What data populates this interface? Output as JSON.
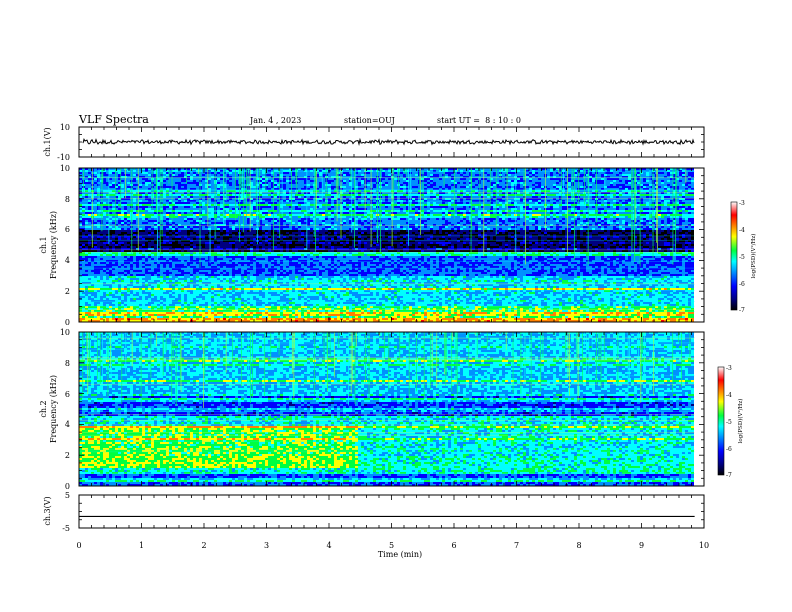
{
  "header": {
    "title": "VLF Spectra",
    "date": "Jan. 4 , 2023",
    "station": "station=OUJ",
    "start_ut": "start UT =  8 : 10 : 0"
  },
  "colors": {
    "background": "#ffffff",
    "axis": "#000000",
    "colormap": [
      "#000000",
      "#000080",
      "#0000ff",
      "#0090ff",
      "#00ffff",
      "#00ff40",
      "#ffff00",
      "#ff8000",
      "#ff0000",
      "#ffffff"
    ]
  },
  "chart_data": [
    {
      "type": "line",
      "panel": "ch1-waveform",
      "ylabel": "ch.1(V)",
      "ylim": [
        -10,
        10
      ],
      "y_ticks": [
        "10",
        "-10"
      ],
      "xlim": [
        0,
        10
      ],
      "series": [
        {
          "values_range": [
            -1.6,
            1.6
          ],
          "mean": 0
        }
      ]
    },
    {
      "type": "heatmap",
      "panel": "ch1-spectrogram",
      "ylabel": "ch.1\nFrequency (kHz)",
      "ylim": [
        0,
        10
      ],
      "y_ticks": [
        "0",
        "2",
        "4",
        "6",
        "8",
        "10"
      ],
      "xlim": [
        0,
        9.85
      ],
      "colorbar": {
        "label": "log(PSD)(V²/Hz)",
        "range": [
          -7,
          -3
        ],
        "ticks": [
          "-7",
          "-6",
          "-5",
          "-4",
          "-3"
        ]
      }
    },
    {
      "type": "heatmap",
      "panel": "ch2-spectrogram",
      "ylabel": "ch.2\nFrequency (kHz)",
      "ylim": [
        0,
        10
      ],
      "y_ticks": [
        "0",
        "2",
        "4",
        "6",
        "8",
        "10"
      ],
      "xlim": [
        0,
        9.85
      ],
      "colorbar": {
        "label": "log(PSD)(V²/Hz)",
        "range": [
          -7,
          -3
        ],
        "ticks": [
          "-7",
          "-6",
          "-5",
          "-4",
          "-3"
        ]
      }
    },
    {
      "type": "line",
      "panel": "ch3-waveform",
      "ylabel": "ch.3(V)",
      "ylim": [
        -5,
        5
      ],
      "y_ticks": [
        "5",
        "-5"
      ],
      "xlim": [
        0,
        10
      ],
      "series": [
        {
          "values": [
            -1.5,
            -1.5
          ],
          "x": [
            0,
            9.85
          ]
        }
      ]
    }
  ],
  "x_axis": {
    "label": "Time (min)",
    "ticks": [
      "0",
      "1",
      "2",
      "3",
      "4",
      "5",
      "6",
      "7",
      "8",
      "9",
      "10"
    ],
    "range": [
      0,
      10
    ]
  }
}
